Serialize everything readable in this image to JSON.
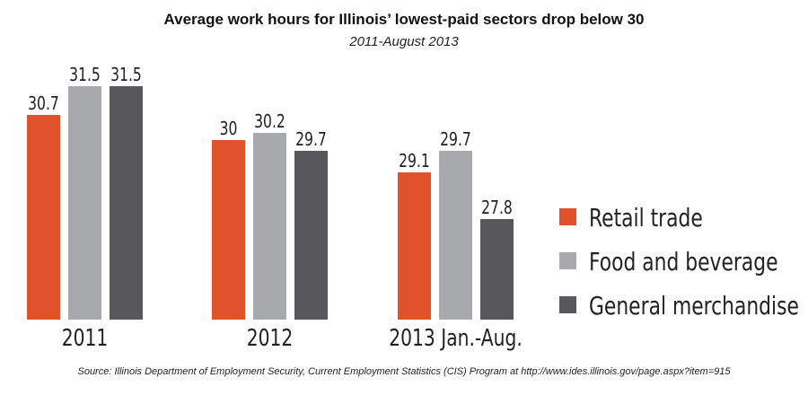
{
  "chart_data": {
    "type": "bar",
    "title": "Average work hours for Illinois’ lowest-paid sectors drop below 30",
    "subtitle": "2011-August 2013",
    "categories": [
      "2011",
      "2012",
      "2013 Jan.-Aug."
    ],
    "series": [
      {
        "name": "Retail trade",
        "values": [
          30.7,
          30,
          29.1
        ],
        "labels": [
          "30.7",
          "30",
          "29.1"
        ],
        "color": "#e0522a"
      },
      {
        "name": "Food and beverage",
        "values": [
          31.5,
          30.2,
          29.7
        ],
        "labels": [
          "31.5",
          "30.2",
          "29.7"
        ],
        "color": "#a8a9ad"
      },
      {
        "name": "General merchandise",
        "values": [
          31.5,
          29.7,
          27.8
        ],
        "labels": [
          "31.5",
          "29.7",
          "27.8"
        ],
        "color": "#58585a"
      }
    ],
    "ylim": [
      25,
      31.5
    ],
    "xlabel": "",
    "ylabel": "",
    "legend": "right",
    "source": "Source: Illinois Department of Employment Security, Current Employment Statistics (CIS) Program at http://www.ides.illinois.gov/page.aspx?item=915"
  }
}
